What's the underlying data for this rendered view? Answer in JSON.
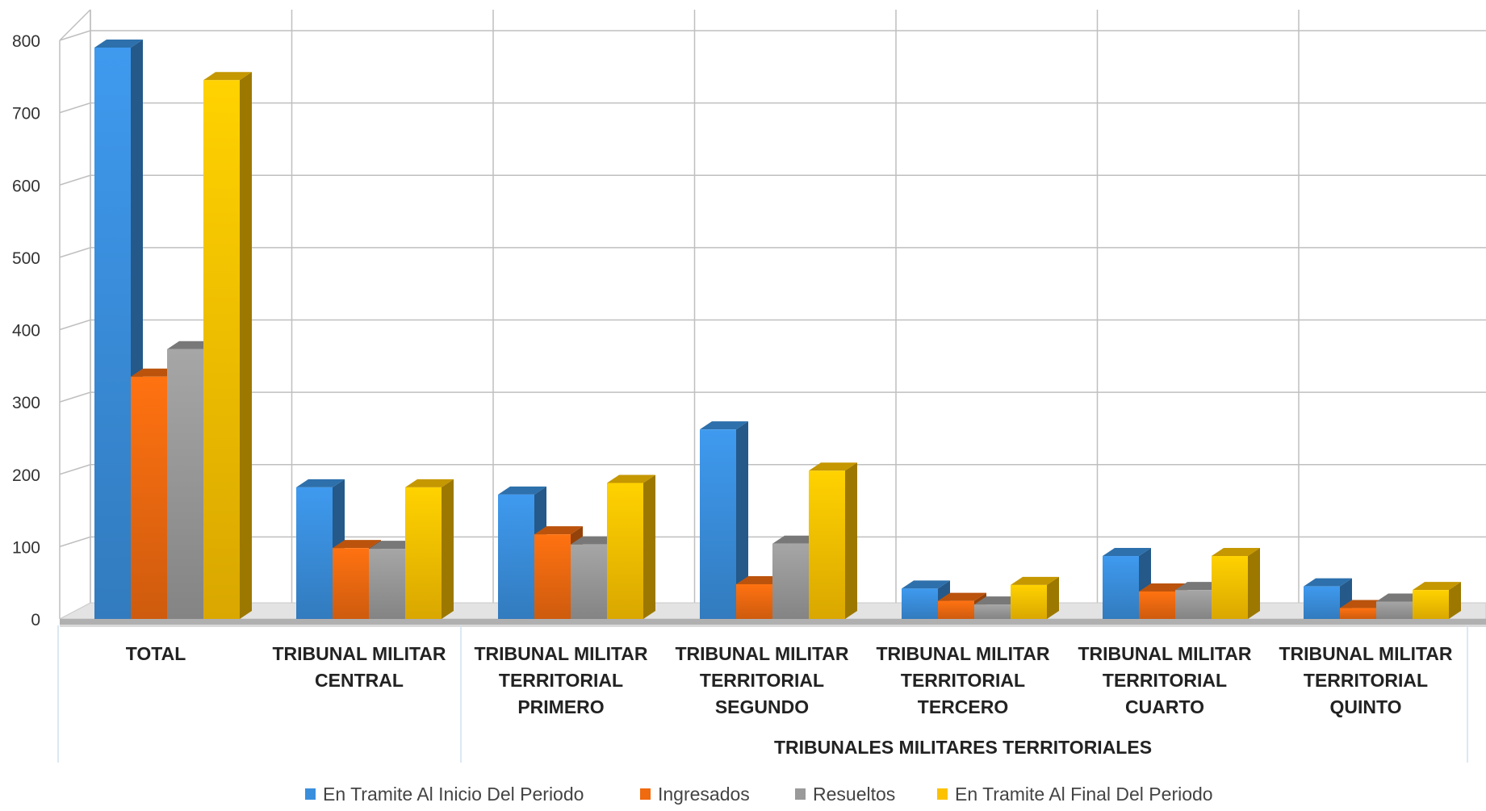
{
  "chart_data": {
    "type": "bar",
    "style": "3d-clustered-column",
    "categories": [
      [
        "TOTAL"
      ],
      [
        "TRIBUNAL MILITAR",
        "CENTRAL"
      ],
      [
        "TRIBUNAL MILITAR",
        "TERRITORIAL",
        "PRIMERO"
      ],
      [
        "TRIBUNAL MILITAR",
        "TERRITORIAL",
        "SEGUNDO"
      ],
      [
        "TRIBUNAL MILITAR",
        "TERRITORIAL",
        "TERCERO"
      ],
      [
        "TRIBUNAL MILITAR",
        "TERRITORIAL",
        "CUARTO"
      ],
      [
        "TRIBUNAL MILITAR",
        "TERRITORIAL",
        "QUINTO"
      ]
    ],
    "group_label": "TRIBUNALES MILITARES TERRITORIALES",
    "series": [
      {
        "name": "En Tramite Al Inicio Del Periodo",
        "color": "#3a8fdd",
        "values": [
          790,
          182,
          172,
          262,
          42,
          87,
          45
        ]
      },
      {
        "name": "Ingresados",
        "color": "#f06a10",
        "values": [
          335,
          98,
          117,
          48,
          25,
          38,
          15
        ]
      },
      {
        "name": "Resueltos",
        "color": "#9a9a9a",
        "values": [
          373,
          97,
          103,
          104,
          20,
          40,
          24
        ]
      },
      {
        "name": "En Tramite Al Final Del Periodo",
        "color": "#fcc200",
        "values": [
          745,
          182,
          188,
          205,
          47,
          87,
          40
        ]
      }
    ],
    "ylim": [
      0,
      800
    ],
    "yticks": [
      0,
      100,
      200,
      300,
      400,
      500,
      600,
      700,
      800
    ],
    "grid": true,
    "legend_position": "bottom"
  }
}
